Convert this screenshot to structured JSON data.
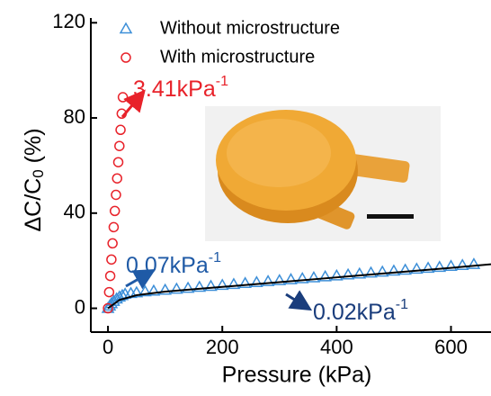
{
  "chart_data": {
    "type": "scatter",
    "x_label": "Pressure (kPa)",
    "y_label": "ΔC/C",
    "y_label_sub": "0",
    "y_label_suffix": " (%)",
    "xlim": [
      -30,
      670
    ],
    "ylim": [
      -10,
      122
    ],
    "xticks": [
      0,
      200,
      400,
      600
    ],
    "yticks": [
      0,
      40,
      80,
      120
    ],
    "legend": "top-left",
    "series": [
      {
        "name": "Without microstructure",
        "color": "#3d8fd8",
        "marker": "triangle",
        "x": [
          0,
          3,
          6,
          10,
          15,
          20,
          25,
          30,
          40,
          50,
          65,
          80,
          100,
          120,
          140,
          160,
          180,
          200,
          220,
          240,
          260,
          280,
          300,
          320,
          340,
          360,
          380,
          400,
          420,
          440,
          460,
          480,
          500,
          520,
          540,
          560,
          580,
          600,
          620,
          640
        ],
        "values": [
          0,
          1,
          2,
          3,
          4,
          4.8,
          5.4,
          6,
          6.3,
          6.6,
          7,
          7.3,
          7.7,
          8.1,
          8.5,
          8.9,
          9.3,
          9.7,
          10.1,
          10.5,
          10.9,
          11.3,
          11.7,
          12.1,
          12.5,
          12.9,
          13.3,
          13.7,
          14.1,
          14.5,
          14.9,
          15.3,
          15.7,
          16.1,
          16.5,
          16.9,
          17.3,
          17.7,
          18.1,
          18.5
        ]
      },
      {
        "name": "With microstructure",
        "color": "#e8222a",
        "marker": "circle",
        "x": [
          0,
          2,
          4,
          6,
          8,
          10,
          12,
          14,
          16,
          18,
          20,
          22,
          24,
          26
        ],
        "values": [
          0,
          6.8,
          13.6,
          20.5,
          27.3,
          34.1,
          40.9,
          47.7,
          54.6,
          61.4,
          68.2,
          75,
          81.8,
          88.7
        ]
      }
    ],
    "fit_line": {
      "color": "#000000",
      "x": [
        0,
        20,
        50,
        100,
        200,
        300,
        400,
        500,
        600,
        670
      ],
      "values": [
        0,
        3.5,
        5.5,
        7,
        9,
        11,
        13,
        15,
        17,
        18.5
      ]
    },
    "annotations": [
      {
        "text": "3.41kPa",
        "superscript": "-1",
        "color": "#e8222a"
      },
      {
        "text": "0.07kPa",
        "superscript": "-1",
        "color": "#1f5aa6"
      },
      {
        "text": "0.02kPa",
        "superscript": "-1",
        "color": "#1a3d7c"
      }
    ]
  }
}
